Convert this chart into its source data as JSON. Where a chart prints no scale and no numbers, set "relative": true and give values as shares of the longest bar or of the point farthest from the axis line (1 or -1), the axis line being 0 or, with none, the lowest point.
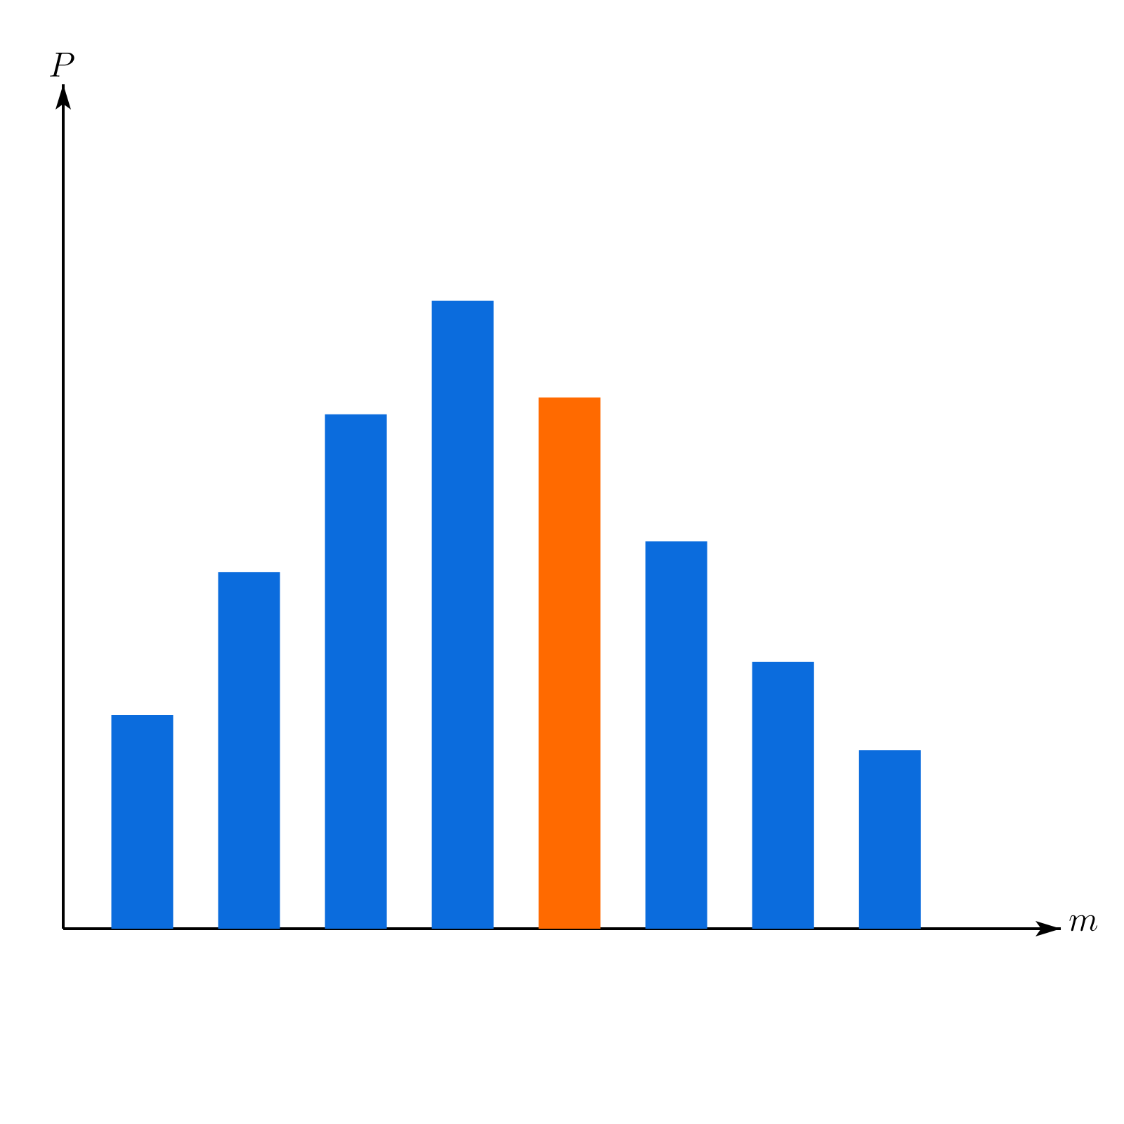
{
  "chart_data": {
    "type": "bar",
    "relative": true,
    "annotations": [
      "P",
      "m"
    ],
    "categories": [
      null,
      null,
      null,
      null,
      null,
      null,
      null,
      null
    ],
    "values": [
      0.34,
      0.568,
      0.819,
      1,
      0.846,
      0.617,
      0.425,
      0.284
    ],
    "colors": [
      "#0b6cdd",
      "#0b6cdd",
      "#0b6cdd",
      "#0b6cdd",
      "#ff6a00",
      "#0b6cdd",
      "#0b6cdd",
      "#0b6cdd"
    ]
  }
}
